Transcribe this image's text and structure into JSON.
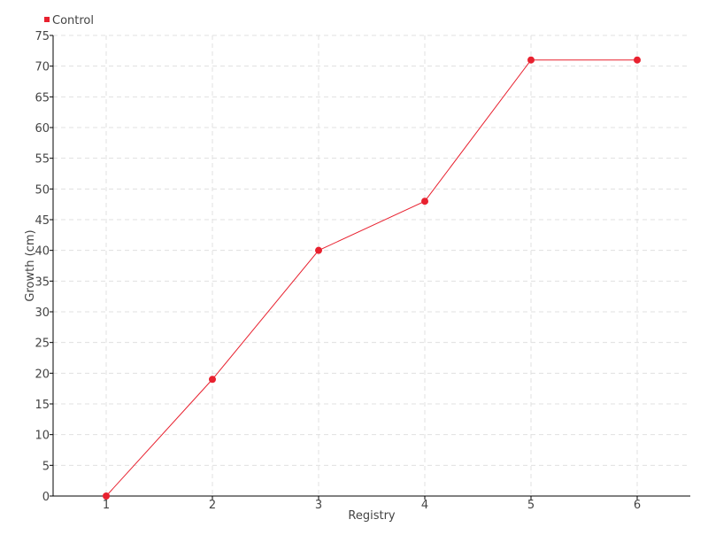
{
  "chart_data": {
    "type": "line",
    "title": "",
    "xlabel": "Registry",
    "ylabel": "Growth (cm)",
    "x": [
      1,
      2,
      3,
      4,
      5,
      6
    ],
    "series": [
      {
        "name": "Control",
        "values": [
          0,
          19,
          40,
          48,
          71,
          71
        ],
        "color": "#e8212f"
      }
    ],
    "xlim": [
      0.5,
      6.5
    ],
    "ylim": [
      0,
      75
    ],
    "yticks": [
      0,
      5,
      10,
      15,
      20,
      25,
      30,
      35,
      40,
      45,
      50,
      55,
      60,
      65,
      70,
      75
    ],
    "xticks": [
      1,
      2,
      3,
      4,
      5,
      6
    ],
    "grid": true,
    "legend_position": "top-left"
  }
}
